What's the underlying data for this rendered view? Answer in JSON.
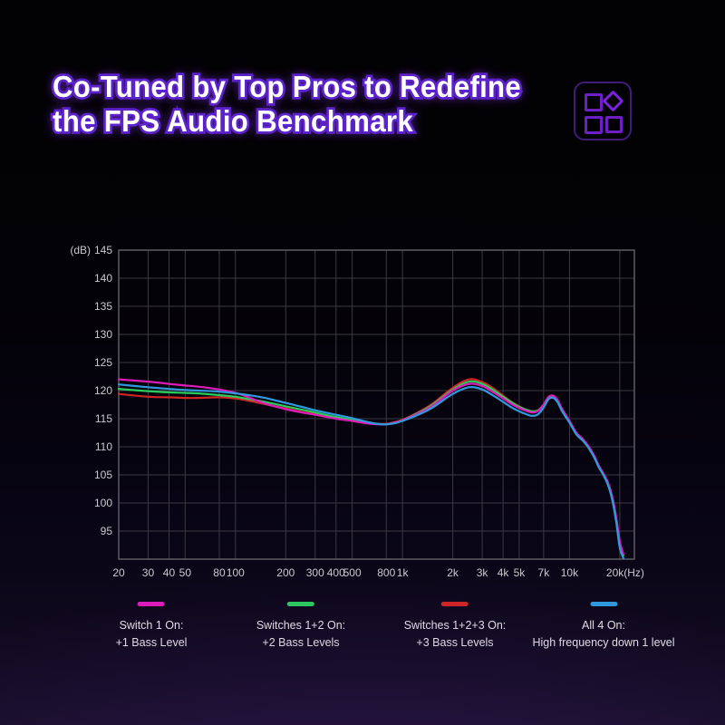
{
  "heading": {
    "line1": "Co-Tuned by Top Pros to Redefine",
    "line2": "the FPS Audio Benchmark"
  },
  "header_icon": "category-grid-icon",
  "colors": {
    "heading_fill": "#ffffff",
    "heading_outline": "#5c22cb",
    "accent_purple": "#7a2be0",
    "grid_line": "#3a3a42",
    "plot_border": "#5d5d65",
    "tick_text": "#c9cacf",
    "legend_text": "#e2e3e8"
  },
  "chart_data": {
    "type": "line",
    "title": "",
    "x_scale": "log",
    "y_unit_label": "(dB)",
    "x_unit_label": "(Hz)",
    "ylim": [
      90,
      145
    ],
    "grid": true,
    "legend_position": "bottom",
    "yticks": [
      145,
      140,
      135,
      130,
      125,
      120,
      115,
      110,
      105,
      100,
      95
    ],
    "xticks": [
      {
        "value": 20,
        "label": "20"
      },
      {
        "value": 30,
        "label": "30"
      },
      {
        "value": 40,
        "label": "40"
      },
      {
        "value": 50,
        "label": "50"
      },
      {
        "value": 80,
        "label": "80"
      },
      {
        "value": 100,
        "label": "100"
      },
      {
        "value": 200,
        "label": "200"
      },
      {
        "value": 300,
        "label": "300"
      },
      {
        "value": 400,
        "label": "400"
      },
      {
        "value": 500,
        "label": "500"
      },
      {
        "value": 800,
        "label": "800"
      },
      {
        "value": 1000,
        "label": "1k"
      },
      {
        "value": 2000,
        "label": "2k"
      },
      {
        "value": 3000,
        "label": "3k"
      },
      {
        "value": 4000,
        "label": "4k"
      },
      {
        "value": 5000,
        "label": "5k"
      },
      {
        "value": 7000,
        "label": "7k"
      },
      {
        "value": 10000,
        "label": "10k"
      },
      {
        "value": 20000,
        "label": "20k(Hz)"
      }
    ],
    "x": [
      20,
      30,
      40,
      50,
      60,
      80,
      100,
      120,
      150,
      200,
      250,
      300,
      400,
      500,
      600,
      700,
      800,
      900,
      1000,
      1200,
      1500,
      2000,
      2500,
      3000,
      3500,
      4000,
      4500,
      5000,
      5500,
      6000,
      6500,
      7000,
      7500,
      8000,
      8500,
      9000,
      10000,
      11000,
      12000,
      13000,
      14000,
      15000,
      16000,
      17000,
      18000,
      19000,
      20000,
      21000
    ],
    "series": [
      {
        "name": "Switch 1 On: +1 Bass Level",
        "legend": [
          "Switch 1 On:",
          "+1 Bass Level"
        ],
        "color": "#dd1cb8",
        "values": [
          122.0,
          121.6,
          121.2,
          120.9,
          120.7,
          120.2,
          119.6,
          118.8,
          117.7,
          116.7,
          116.1,
          115.7,
          115.0,
          114.6,
          114.2,
          114.0,
          114.0,
          114.3,
          114.7,
          115.7,
          117.2,
          120.0,
          121.2,
          120.8,
          119.7,
          118.6,
          117.6,
          116.9,
          116.4,
          116.1,
          116.4,
          117.5,
          118.9,
          119.1,
          118.3,
          116.8,
          114.6,
          112.5,
          111.4,
          110.1,
          108.5,
          106.6,
          105.2,
          103.6,
          101.2,
          97.6,
          93.2,
          90.9
        ]
      },
      {
        "name": "Switches 1+2 On: +2 Bass Levels",
        "legend": [
          "Switches 1+2 On:",
          "+2 Bass Levels"
        ],
        "color": "#2bcc5e",
        "values": [
          120.3,
          119.9,
          119.7,
          119.6,
          119.5,
          119.2,
          118.9,
          118.5,
          118.0,
          117.2,
          116.6,
          116.1,
          115.3,
          114.8,
          114.4,
          114.1,
          114.0,
          114.3,
          114.7,
          115.8,
          117.4,
          120.2,
          121.6,
          121.2,
          120.1,
          118.9,
          117.9,
          117.1,
          116.6,
          116.3,
          116.5,
          117.5,
          118.8,
          119.0,
          118.2,
          116.7,
          114.5,
          112.4,
          111.3,
          110.0,
          108.4,
          106.5,
          105.1,
          103.5,
          101.0,
          97.4,
          93.0,
          90.7
        ]
      },
      {
        "name": "Switches 1+2+3 On: +3 Bass Levels",
        "legend": [
          "Switches 1+2+3 On:",
          "+3 Bass Levels"
        ],
        "color": "#d02525",
        "values": [
          119.4,
          118.9,
          118.8,
          118.7,
          118.7,
          118.8,
          118.6,
          118.2,
          117.6,
          116.8,
          116.2,
          115.8,
          115.1,
          114.7,
          114.3,
          114.1,
          114.1,
          114.4,
          114.8,
          115.9,
          117.6,
          120.5,
          122.0,
          121.5,
          120.4,
          119.1,
          118.0,
          117.2,
          116.6,
          116.3,
          116.5,
          117.5,
          118.8,
          119.0,
          118.2,
          116.7,
          114.5,
          112.4,
          111.3,
          110.0,
          108.4,
          106.5,
          105.1,
          103.5,
          101.0,
          97.4,
          93.0,
          90.7
        ]
      },
      {
        "name": "All 4 On: High frequency down 1 level",
        "legend": [
          "All 4 On:",
          "High frequency down 1 level"
        ],
        "color": "#2f9ade",
        "values": [
          121.1,
          120.6,
          120.3,
          120.1,
          120.0,
          119.8,
          119.5,
          119.2,
          118.7,
          117.8,
          117.1,
          116.5,
          115.7,
          115.1,
          114.5,
          114.1,
          114.0,
          114.2,
          114.6,
          115.5,
          116.9,
          119.4,
          120.6,
          120.2,
          119.1,
          118.0,
          117.0,
          116.3,
          115.8,
          115.5,
          115.8,
          117.0,
          118.5,
          118.7,
          117.9,
          116.4,
          114.3,
          112.2,
          111.1,
          109.8,
          108.2,
          106.3,
          104.9,
          103.2,
          100.6,
          96.8,
          92.0,
          90.2
        ]
      }
    ]
  }
}
